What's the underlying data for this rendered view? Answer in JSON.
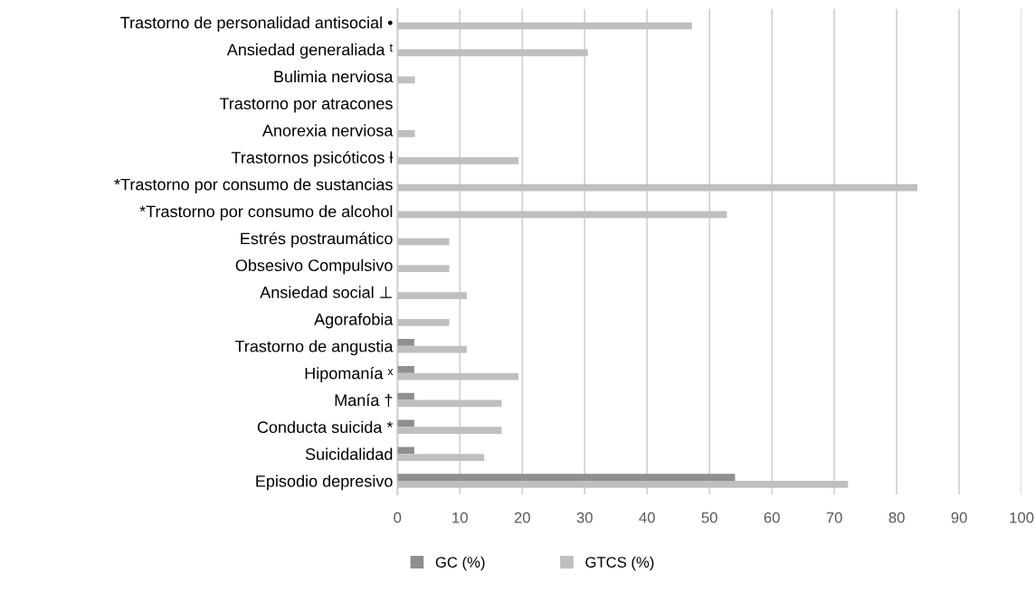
{
  "chart_data": {
    "type": "bar",
    "orientation": "horizontal",
    "categories": [
      "Trastorno de personalidad antisocial •",
      "Ansiedad generaliada ᵗ",
      "Bulimia nerviosa",
      "Trastorno por atracones",
      "Anorexia nerviosa",
      "Trastornos psicóticos ƚ",
      "*Trastorno por consumo de sustancias",
      "*Trastorno por consumo de alcohol",
      "Estrés postraumático",
      "Obsesivo Compulsivo",
      "Ansiedad social ⊥",
      "Agorafobia",
      "Trastorno de angustia",
      "Hipomanía ˣ",
      "Manía †",
      "Conducta suicida *",
      "Suicidalidad",
      "Episodio depresivo"
    ],
    "series": [
      {
        "name": "GC (%)",
        "color": "#8f8f8f",
        "values": [
          0,
          0,
          0,
          0,
          0,
          0,
          0,
          0,
          0,
          0,
          0,
          0,
          2.7,
          2.7,
          2.7,
          2.7,
          2.7,
          54.1
        ]
      },
      {
        "name": "GTCS (%)",
        "color": "#bfbfbf",
        "values": [
          47.2,
          30.5,
          2.8,
          0,
          2.8,
          19.4,
          83.3,
          52.8,
          8.3,
          8.3,
          11.1,
          8.3,
          11.1,
          19.4,
          16.7,
          16.7,
          13.9,
          72.2
        ]
      }
    ],
    "xlim": [
      0,
      100
    ],
    "xticks": [
      0,
      10,
      20,
      30,
      40,
      50,
      60,
      70,
      80,
      90,
      100
    ],
    "grid": "x",
    "legend": "bottom"
  }
}
